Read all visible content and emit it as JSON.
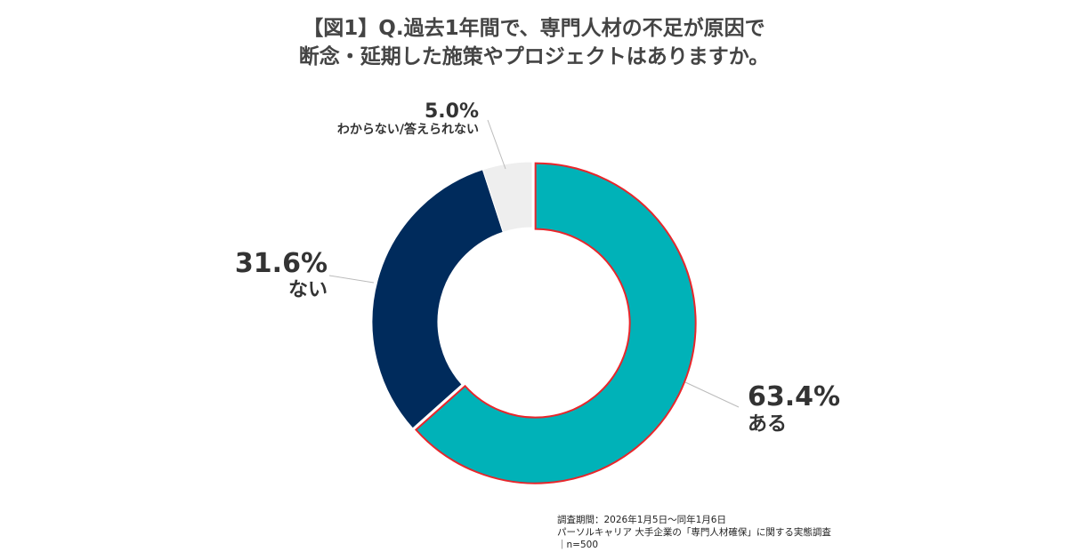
{
  "title": [
    "【図1】Q.過去1年間で、専門人材の不足が原因で",
    "断念・延期した施策やプロジェクトはありますか。"
  ],
  "chart_data": {
    "type": "pie",
    "donut": true,
    "start": "12 o'clock, clockwise",
    "slices": [
      {
        "label": "ある",
        "value": 63.4,
        "value_label": "63.4%",
        "color": "#00B2B8",
        "highlighted": true,
        "highlight_color": "#E8262B"
      },
      {
        "label": "ない",
        "value": 31.6,
        "value_label": "31.6%",
        "color": "#002B5C"
      },
      {
        "label": "わからない/答えられない",
        "value": 5.0,
        "value_label": "5.0%",
        "color": "#EEEEEE"
      }
    ]
  },
  "notes": [
    "調査期間：2026年1月5日～同年1月6日",
    "パーソルキャリア 大手企業の「専門人材確保」に関する実態調査",
    "｜n=500"
  ]
}
